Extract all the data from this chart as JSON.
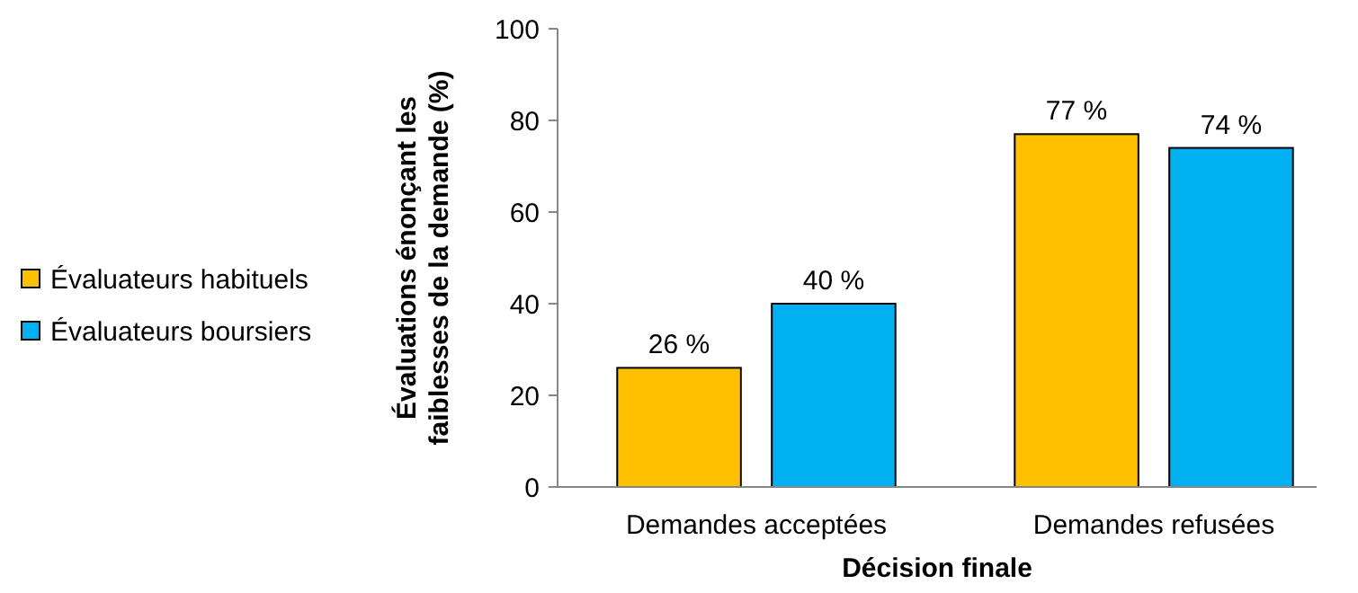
{
  "chart_data": {
    "type": "bar",
    "xlabel": "Décision finale",
    "ylabel": "Évaluations énonçant les faiblesses de la demande (%)",
    "categories": [
      "Demandes acceptées",
      "Demandes refusées"
    ],
    "series": [
      {
        "name": "Évaluateurs habituels",
        "color": "#ffc000",
        "values": [
          26,
          77
        ],
        "value_labels": [
          "26 %",
          "77 %"
        ]
      },
      {
        "name": "Évaluateurs boursiers",
        "color": "#00b0f0",
        "values": [
          40,
          74
        ],
        "value_labels": [
          "40 %",
          "74 %"
        ]
      }
    ],
    "ylim": [
      0,
      100
    ],
    "yticks": [
      0,
      20,
      40,
      60,
      80,
      100
    ],
    "grid": false,
    "legend": "left"
  }
}
